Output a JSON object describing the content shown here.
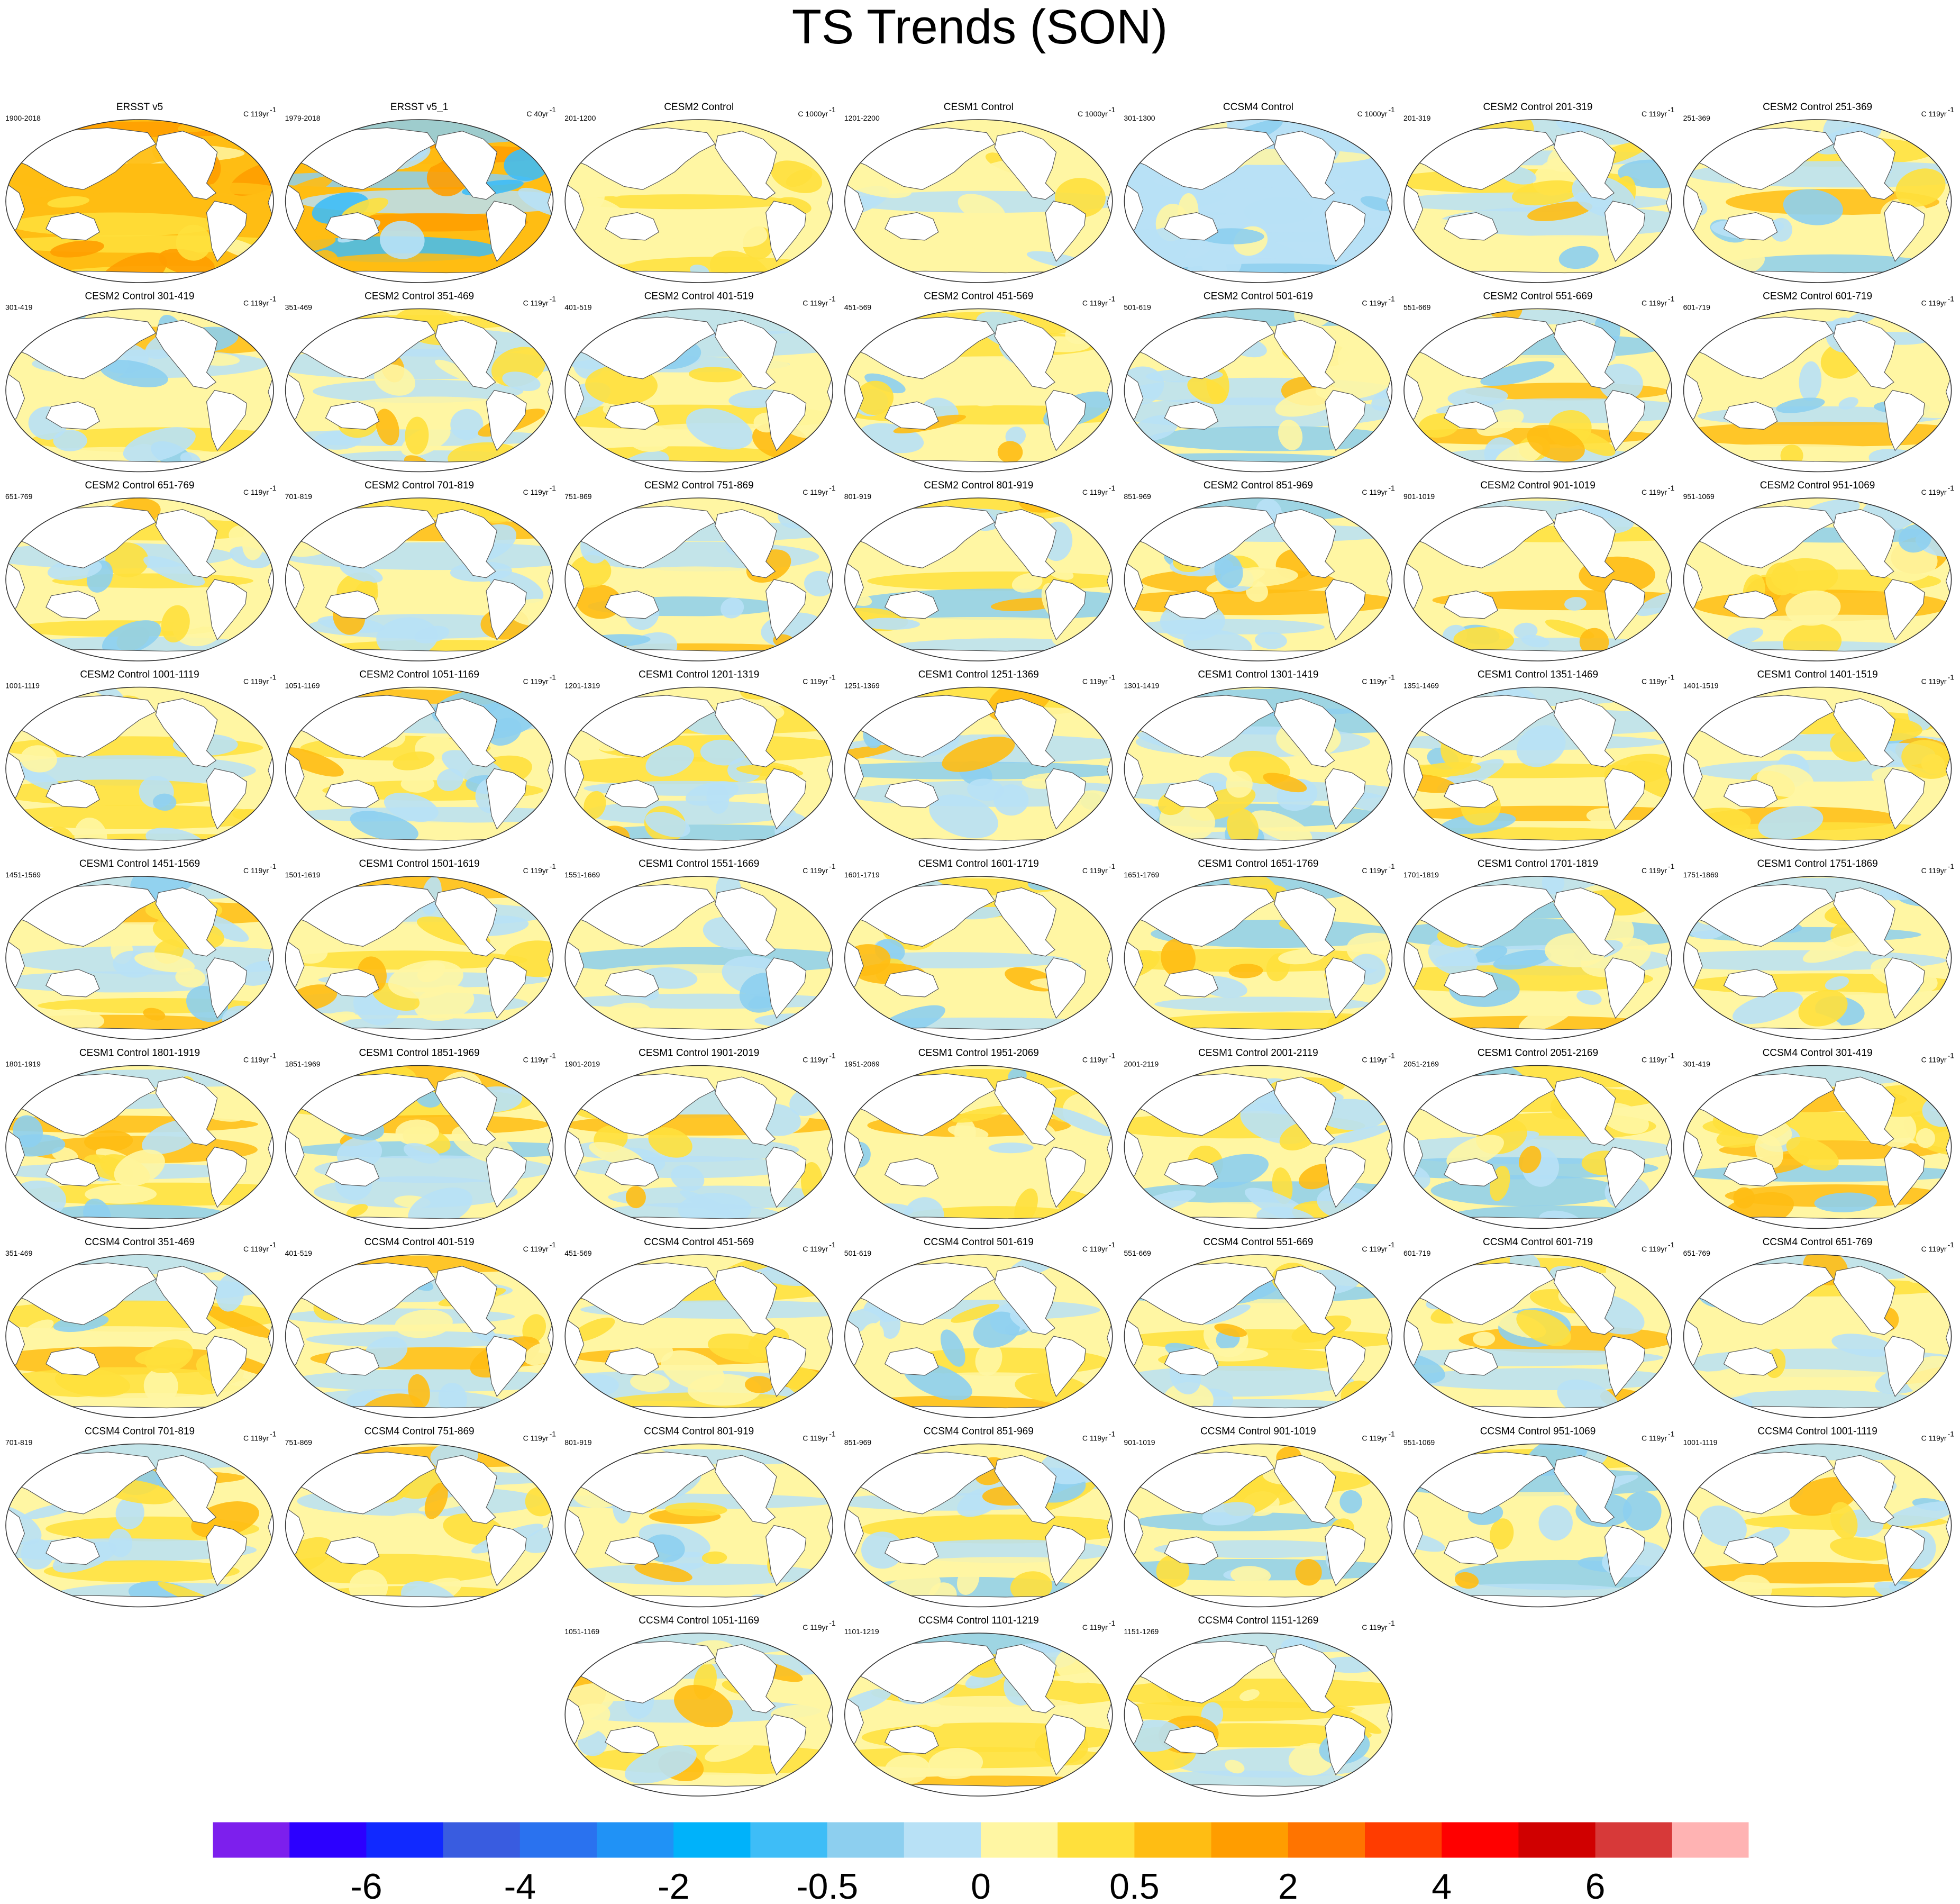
{
  "chart_data": {
    "type": "heatmap",
    "title": "TS Trends (SON)",
    "panel_type": "global map of surface temperature trend (filled contours)",
    "units": "C",
    "panels": [
      {
        "title": "ERSST v5",
        "period": "1900-2018",
        "units": "C 119yr",
        "pattern": "warm-strong"
      },
      {
        "title": "ERSST v5_1",
        "period": "1979-2018",
        "units": "C 40yr",
        "pattern": "warm-strong-south-cool"
      },
      {
        "title": "CESM2 Control",
        "period": "201-1200",
        "units": "C 1000yr",
        "pattern": "neutral-warm"
      },
      {
        "title": "CESM1 Control",
        "period": "1201-2200",
        "units": "C 1000yr",
        "pattern": "neutral"
      },
      {
        "title": "CCSM4 Control",
        "period": "301-1300",
        "units": "C 1000yr",
        "pattern": "neutral-cool"
      },
      {
        "title": "CESM2 Control 201-319",
        "period": "201-319",
        "units": "C 119yr",
        "pattern": "mixed"
      },
      {
        "title": "CESM2 Control 251-369",
        "period": "251-369",
        "units": "C 119yr",
        "pattern": "mixed"
      },
      {
        "title": "CESM2 Control 301-419",
        "period": "301-419",
        "units": "C 119yr",
        "pattern": "mixed"
      },
      {
        "title": "CESM2 Control 351-469",
        "period": "351-469",
        "units": "C 119yr",
        "pattern": "mixed"
      },
      {
        "title": "CESM2 Control 401-519",
        "period": "401-519",
        "units": "C 119yr",
        "pattern": "mixed"
      },
      {
        "title": "CESM2 Control 451-569",
        "period": "451-569",
        "units": "C 119yr",
        "pattern": "mixed"
      },
      {
        "title": "CESM2 Control 501-619",
        "period": "501-619",
        "units": "C 119yr",
        "pattern": "mixed"
      },
      {
        "title": "CESM2 Control 551-669",
        "period": "551-669",
        "units": "C 119yr",
        "pattern": "mixed"
      },
      {
        "title": "CESM2 Control 601-719",
        "period": "601-719",
        "units": "C 119yr",
        "pattern": "mixed"
      },
      {
        "title": "CESM2 Control 651-769",
        "period": "651-769",
        "units": "C 119yr",
        "pattern": "mixed"
      },
      {
        "title": "CESM2 Control 701-819",
        "period": "701-819",
        "units": "C 119yr",
        "pattern": "mixed"
      },
      {
        "title": "CESM2 Control 751-869",
        "period": "751-869",
        "units": "C 119yr",
        "pattern": "mixed"
      },
      {
        "title": "CESM2 Control 801-919",
        "period": "801-919",
        "units": "C 119yr",
        "pattern": "mixed"
      },
      {
        "title": "CESM2 Control 851-969",
        "period": "851-969",
        "units": "C 119yr",
        "pattern": "mixed"
      },
      {
        "title": "CESM2 Control 901-1019",
        "period": "901-1019",
        "units": "C 119yr",
        "pattern": "mixed"
      },
      {
        "title": "CESM2 Control 951-1069",
        "period": "951-1069",
        "units": "C 119yr",
        "pattern": "mixed"
      },
      {
        "title": "CESM2 Control 1001-1119",
        "period": "1001-1119",
        "units": "C 119yr",
        "pattern": "mixed"
      },
      {
        "title": "CESM2 Control 1051-1169",
        "period": "1051-1169",
        "units": "C 119yr",
        "pattern": "mixed"
      },
      {
        "title": "CESM1 Control 1201-1319",
        "period": "1201-1319",
        "units": "C 119yr",
        "pattern": "mixed"
      },
      {
        "title": "CESM1 Control 1251-1369",
        "period": "1251-1369",
        "units": "C 119yr",
        "pattern": "mixed"
      },
      {
        "title": "CESM1 Control 1301-1419",
        "period": "1301-1419",
        "units": "C 119yr",
        "pattern": "mixed"
      },
      {
        "title": "CESM1 Control 1351-1469",
        "period": "1351-1469",
        "units": "C 119yr",
        "pattern": "mixed"
      },
      {
        "title": "CESM1 Control 1401-1519",
        "period": "1401-1519",
        "units": "C 119yr",
        "pattern": "mixed"
      },
      {
        "title": "CESM1 Control 1451-1569",
        "period": "1451-1569",
        "units": "C 119yr",
        "pattern": "mixed"
      },
      {
        "title": "CESM1 Control 1501-1619",
        "period": "1501-1619",
        "units": "C 119yr",
        "pattern": "mixed"
      },
      {
        "title": "CESM1 Control 1551-1669",
        "period": "1551-1669",
        "units": "C 119yr",
        "pattern": "mixed"
      },
      {
        "title": "CESM1 Control 1601-1719",
        "period": "1601-1719",
        "units": "C 119yr",
        "pattern": "mixed"
      },
      {
        "title": "CESM1 Control 1651-1769",
        "period": "1651-1769",
        "units": "C 119yr",
        "pattern": "mixed"
      },
      {
        "title": "CESM1 Control 1701-1819",
        "period": "1701-1819",
        "units": "C 119yr",
        "pattern": "mixed"
      },
      {
        "title": "CESM1 Control 1751-1869",
        "period": "1751-1869",
        "units": "C 119yr",
        "pattern": "mixed"
      },
      {
        "title": "CESM1 Control 1801-1919",
        "period": "1801-1919",
        "units": "C 119yr",
        "pattern": "mixed"
      },
      {
        "title": "CESM1 Control 1851-1969",
        "period": "1851-1969",
        "units": "C 119yr",
        "pattern": "mixed"
      },
      {
        "title": "CESM1 Control 1901-2019",
        "period": "1901-2019",
        "units": "C 119yr",
        "pattern": "mixed"
      },
      {
        "title": "CESM1 Control 1951-2069",
        "period": "1951-2069",
        "units": "C 119yr",
        "pattern": "mixed"
      },
      {
        "title": "CESM1 Control 2001-2119",
        "period": "2001-2119",
        "units": "C 119yr",
        "pattern": "mixed"
      },
      {
        "title": "CESM1 Control 2051-2169",
        "period": "2051-2169",
        "units": "C 119yr",
        "pattern": "mixed"
      },
      {
        "title": "CCSM4 Control 301-419",
        "period": "301-419",
        "units": "C 119yr",
        "pattern": "mixed"
      },
      {
        "title": "CCSM4 Control 351-469",
        "period": "351-469",
        "units": "C 119yr",
        "pattern": "mixed"
      },
      {
        "title": "CCSM4 Control 401-519",
        "period": "401-519",
        "units": "C 119yr",
        "pattern": "mixed"
      },
      {
        "title": "CCSM4 Control 451-569",
        "period": "451-569",
        "units": "C 119yr",
        "pattern": "mixed"
      },
      {
        "title": "CCSM4 Control 501-619",
        "period": "501-619",
        "units": "C 119yr",
        "pattern": "mixed"
      },
      {
        "title": "CCSM4 Control 551-669",
        "period": "551-669",
        "units": "C 119yr",
        "pattern": "mixed"
      },
      {
        "title": "CCSM4 Control 601-719",
        "period": "601-719",
        "units": "C 119yr",
        "pattern": "mixed"
      },
      {
        "title": "CCSM4 Control 651-769",
        "period": "651-769",
        "units": "C 119yr",
        "pattern": "mixed"
      },
      {
        "title": "CCSM4 Control 701-819",
        "period": "701-819",
        "units": "C 119yr",
        "pattern": "mixed"
      },
      {
        "title": "CCSM4 Control 751-869",
        "period": "751-869",
        "units": "C 119yr",
        "pattern": "mixed"
      },
      {
        "title": "CCSM4 Control 801-919",
        "period": "801-919",
        "units": "C 119yr",
        "pattern": "mixed"
      },
      {
        "title": "CCSM4 Control 851-969",
        "period": "851-969",
        "units": "C 119yr",
        "pattern": "mixed"
      },
      {
        "title": "CCSM4 Control 901-1019",
        "period": "901-1019",
        "units": "C 119yr",
        "pattern": "mixed"
      },
      {
        "title": "CCSM4 Control 951-1069",
        "period": "951-1069",
        "units": "C 119yr",
        "pattern": "mixed"
      },
      {
        "title": "CCSM4 Control 1001-1119",
        "period": "1001-1119",
        "units": "C 119yr",
        "pattern": "mixed"
      },
      {
        "title": "CCSM4 Control 1051-1169",
        "period": "1051-1169",
        "units": "C 119yr",
        "pattern": "mixed"
      },
      {
        "title": "CCSM4 Control 1101-1219",
        "period": "1101-1219",
        "units": "C 119yr",
        "pattern": "mixed"
      },
      {
        "title": "CCSM4 Control 1151-1269",
        "period": "1151-1269",
        "units": "C 119yr",
        "pattern": "mixed"
      }
    ],
    "colorbar": {
      "labels": [
        "-6",
        "-4",
        "-2",
        "-0.5",
        "0",
        "0.5",
        "2",
        "4",
        "6"
      ],
      "colors": [
        "#7d1fed",
        "#2c00ff",
        "#1129ff",
        "#395ce0",
        "#2a72ef",
        "#2092f6",
        "#00b2fa",
        "#3ebdf7",
        "#8dcfef",
        "#b8e1f6",
        "#fff6a3",
        "#ffe03c",
        "#ffbd13",
        "#ff9d00",
        "#ff7400",
        "#ff3c00",
        "#ff0000",
        "#d00000",
        "#d73939",
        "#ffb3b3"
      ]
    }
  }
}
